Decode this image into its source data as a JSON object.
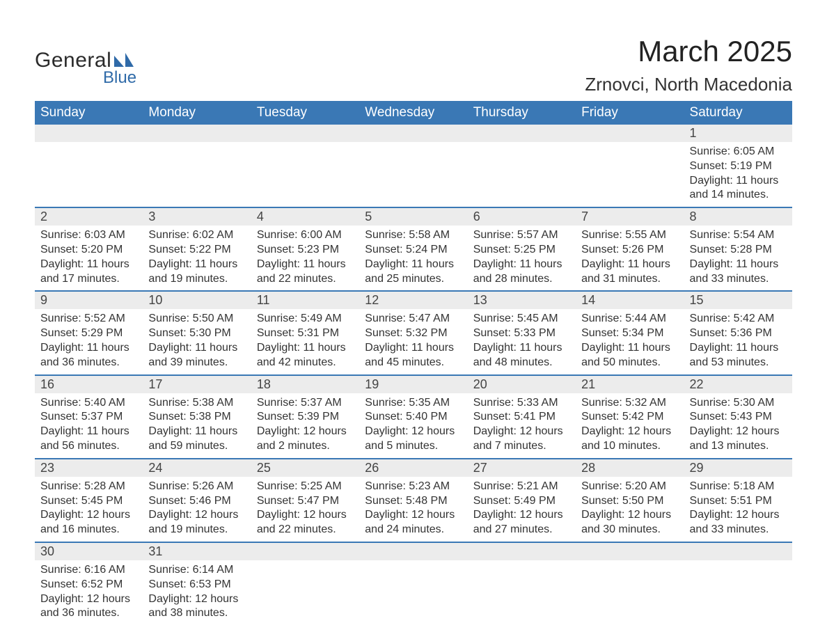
{
  "logo": {
    "name1": "General",
    "name2": "Blue",
    "icon_color": "#2f6aa8"
  },
  "title": "March 2025",
  "location": "Zrnovci, North Macedonia",
  "colors": {
    "header_bg": "#3a78b5",
    "header_text": "#ffffff",
    "dayrow_bg": "#ececec",
    "row_divider": "#3a78b5",
    "text": "#333333",
    "background": "#ffffff"
  },
  "weekdays": [
    "Sunday",
    "Monday",
    "Tuesday",
    "Wednesday",
    "Thursday",
    "Friday",
    "Saturday"
  ],
  "weeks": [
    [
      null,
      null,
      null,
      null,
      null,
      null,
      {
        "d": "1",
        "sr": "6:05 AM",
        "ss": "5:19 PM",
        "dl": "11 hours and 14 minutes."
      }
    ],
    [
      {
        "d": "2",
        "sr": "6:03 AM",
        "ss": "5:20 PM",
        "dl": "11 hours and 17 minutes."
      },
      {
        "d": "3",
        "sr": "6:02 AM",
        "ss": "5:22 PM",
        "dl": "11 hours and 19 minutes."
      },
      {
        "d": "4",
        "sr": "6:00 AM",
        "ss": "5:23 PM",
        "dl": "11 hours and 22 minutes."
      },
      {
        "d": "5",
        "sr": "5:58 AM",
        "ss": "5:24 PM",
        "dl": "11 hours and 25 minutes."
      },
      {
        "d": "6",
        "sr": "5:57 AM",
        "ss": "5:25 PM",
        "dl": "11 hours and 28 minutes."
      },
      {
        "d": "7",
        "sr": "5:55 AM",
        "ss": "5:26 PM",
        "dl": "11 hours and 31 minutes."
      },
      {
        "d": "8",
        "sr": "5:54 AM",
        "ss": "5:28 PM",
        "dl": "11 hours and 33 minutes."
      }
    ],
    [
      {
        "d": "9",
        "sr": "5:52 AM",
        "ss": "5:29 PM",
        "dl": "11 hours and 36 minutes."
      },
      {
        "d": "10",
        "sr": "5:50 AM",
        "ss": "5:30 PM",
        "dl": "11 hours and 39 minutes."
      },
      {
        "d": "11",
        "sr": "5:49 AM",
        "ss": "5:31 PM",
        "dl": "11 hours and 42 minutes."
      },
      {
        "d": "12",
        "sr": "5:47 AM",
        "ss": "5:32 PM",
        "dl": "11 hours and 45 minutes."
      },
      {
        "d": "13",
        "sr": "5:45 AM",
        "ss": "5:33 PM",
        "dl": "11 hours and 48 minutes."
      },
      {
        "d": "14",
        "sr": "5:44 AM",
        "ss": "5:34 PM",
        "dl": "11 hours and 50 minutes."
      },
      {
        "d": "15",
        "sr": "5:42 AM",
        "ss": "5:36 PM",
        "dl": "11 hours and 53 minutes."
      }
    ],
    [
      {
        "d": "16",
        "sr": "5:40 AM",
        "ss": "5:37 PM",
        "dl": "11 hours and 56 minutes."
      },
      {
        "d": "17",
        "sr": "5:38 AM",
        "ss": "5:38 PM",
        "dl": "11 hours and 59 minutes."
      },
      {
        "d": "18",
        "sr": "5:37 AM",
        "ss": "5:39 PM",
        "dl": "12 hours and 2 minutes."
      },
      {
        "d": "19",
        "sr": "5:35 AM",
        "ss": "5:40 PM",
        "dl": "12 hours and 5 minutes."
      },
      {
        "d": "20",
        "sr": "5:33 AM",
        "ss": "5:41 PM",
        "dl": "12 hours and 7 minutes."
      },
      {
        "d": "21",
        "sr": "5:32 AM",
        "ss": "5:42 PM",
        "dl": "12 hours and 10 minutes."
      },
      {
        "d": "22",
        "sr": "5:30 AM",
        "ss": "5:43 PM",
        "dl": "12 hours and 13 minutes."
      }
    ],
    [
      {
        "d": "23",
        "sr": "5:28 AM",
        "ss": "5:45 PM",
        "dl": "12 hours and 16 minutes."
      },
      {
        "d": "24",
        "sr": "5:26 AM",
        "ss": "5:46 PM",
        "dl": "12 hours and 19 minutes."
      },
      {
        "d": "25",
        "sr": "5:25 AM",
        "ss": "5:47 PM",
        "dl": "12 hours and 22 minutes."
      },
      {
        "d": "26",
        "sr": "5:23 AM",
        "ss": "5:48 PM",
        "dl": "12 hours and 24 minutes."
      },
      {
        "d": "27",
        "sr": "5:21 AM",
        "ss": "5:49 PM",
        "dl": "12 hours and 27 minutes."
      },
      {
        "d": "28",
        "sr": "5:20 AM",
        "ss": "5:50 PM",
        "dl": "12 hours and 30 minutes."
      },
      {
        "d": "29",
        "sr": "5:18 AM",
        "ss": "5:51 PM",
        "dl": "12 hours and 33 minutes."
      }
    ],
    [
      {
        "d": "30",
        "sr": "6:16 AM",
        "ss": "6:52 PM",
        "dl": "12 hours and 36 minutes."
      },
      {
        "d": "31",
        "sr": "6:14 AM",
        "ss": "6:53 PM",
        "dl": "12 hours and 38 minutes."
      },
      null,
      null,
      null,
      null,
      null
    ]
  ],
  "labels": {
    "sunrise": "Sunrise:",
    "sunset": "Sunset:",
    "daylight": "Daylight:"
  }
}
